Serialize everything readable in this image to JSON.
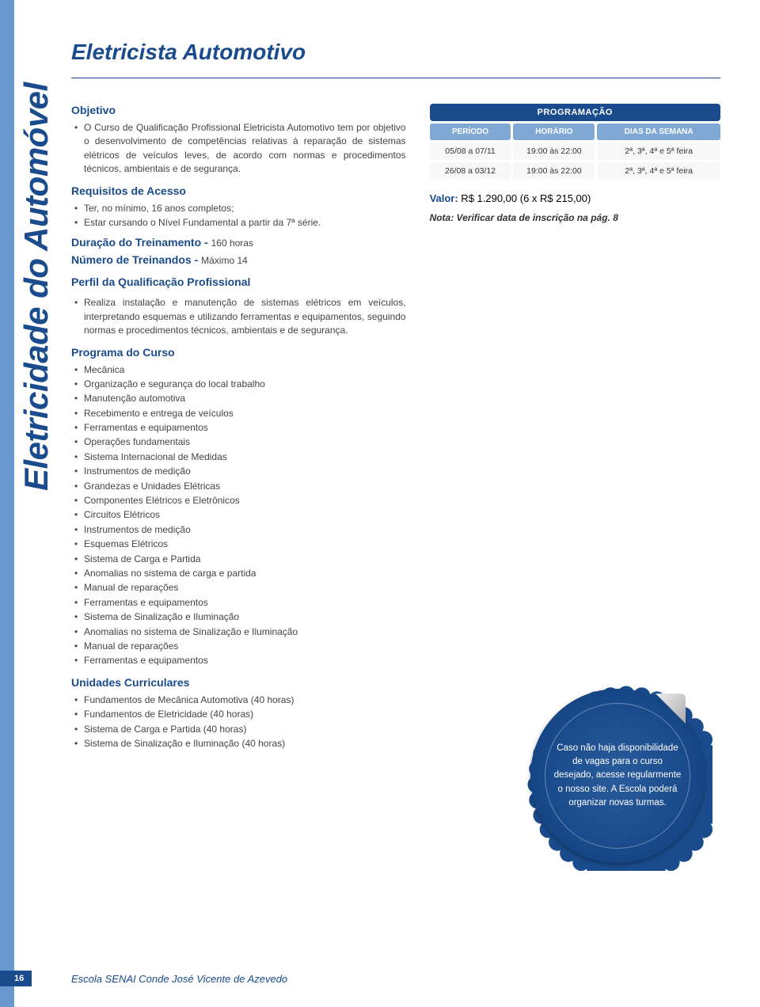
{
  "page": {
    "number": "16",
    "footer": "Escola SENAI Conde José Vicente de Azevedo",
    "side_label": "Eletricidade do Automóvel",
    "title": "Eletricista Automotivo"
  },
  "sections": {
    "objetivo": {
      "heading": "Objetivo",
      "items": [
        "O Curso de Qualificação Profissional Eletricista Automotivo tem por objetivo o desenvolvimento de competências relativas à reparação de sistemas elétricos de veículos leves, de acordo com normas e procedimentos técnicos, ambientais e de segurança."
      ]
    },
    "requisitos": {
      "heading": "Requisitos de Acesso",
      "items": [
        "Ter, no mínimo, 16 anos completos;",
        "Estar cursando o Nível Fundamental a partir da 7ª série."
      ]
    },
    "duracao": {
      "label": "Duração do Treinamento - ",
      "value": "160 horas"
    },
    "numero": {
      "label": "Número de Treinandos - ",
      "value": "Máximo 14"
    },
    "perfil": {
      "heading": "Perfil da Qualificação Profissional",
      "items": [
        "Realiza instalação e manutenção de sistemas elétricos em veículos, interpretando esquemas e utilizando ferramentas e equipamentos, seguindo normas e procedimentos técnicos, ambientais e de segurança."
      ]
    },
    "programa": {
      "heading": "Programa do Curso",
      "items": [
        "Mecânica",
        "Organização e segurança do local trabalho",
        "Manutenção automotiva",
        "Recebimento e entrega de veículos",
        "Ferramentas e equipamentos",
        "Operações fundamentais",
        "Sistema Internacional de Medidas",
        "Instrumentos de medição",
        "Grandezas e Unidades Elétricas",
        "Componentes Elétricos e Eletrônicos",
        "Circuitos Elétricos",
        "Instrumentos de medição",
        "Esquemas Elétricos",
        "Sistema de Carga e Partida",
        "Anomalias no sistema de carga e partida",
        "Manual de reparações",
        "Ferramentas e equipamentos",
        "Sistema de Sinalização e Iluminação",
        "Anomalias no sistema de Sinalização e Iluminação",
        "Manual de reparações",
        "Ferramentas e equipamentos"
      ]
    },
    "unidades": {
      "heading": "Unidades Curriculares",
      "items": [
        "Fundamentos de Mecânica Automotiva (40 horas)",
        "Fundamentos de Eletricidade (40 horas)",
        "Sistema de Carga e Partida (40 horas)",
        "Sistema de Sinalização e Iluminação (40 horas)"
      ]
    }
  },
  "schedule": {
    "title": "PROGRAMAÇÃO",
    "headers": {
      "c1": "PERÍODO",
      "c2": "HORÁRIO",
      "c3": "DIAS DA SEMANA"
    },
    "rows": [
      {
        "c1": "05/08 a 07/11",
        "c2": "19:00 às 22:00",
        "c3": "2ª, 3ª, 4ª e 5ª feira"
      },
      {
        "c1": "26/08 a 03/12",
        "c2": "19:00 às 22:00",
        "c3": "2ª, 3ª, 4ª e 5ª feira"
      }
    ],
    "header_bg": "#1a4b8c",
    "subheader_bg": "#7fa8d4",
    "cell_bg": "#f8f8f8"
  },
  "valor": {
    "label": "Valor:",
    "value": " R$ 1.290,00 (6 x R$ 215,00)"
  },
  "note": "Nota: Verificar data de inscrição na pág. 8",
  "badge": {
    "text": "Caso não haja disponibilidade de vagas para o curso desejado, acesse regularmente o nosso site. A Escola poderá organizar novas turmas.",
    "bg": "#1a4b8c"
  },
  "colors": {
    "brand": "#1a4b8c",
    "stripe": "#6a99cf"
  }
}
